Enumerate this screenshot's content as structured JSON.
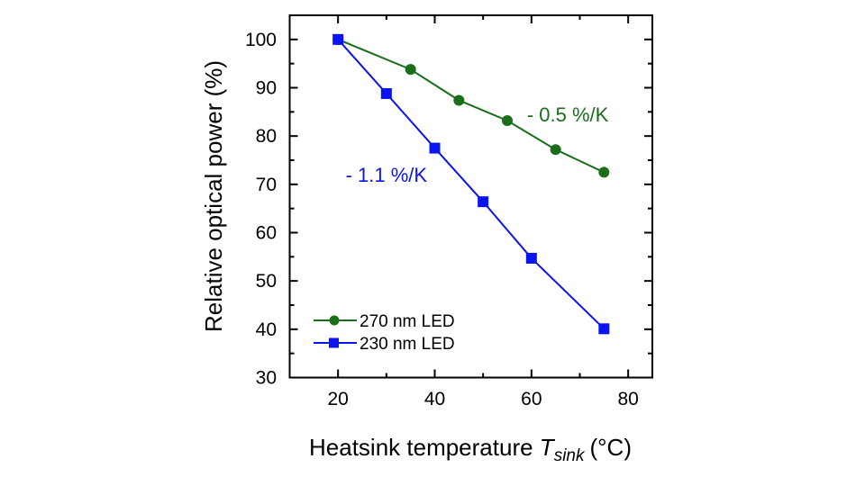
{
  "chart_data": {
    "type": "line",
    "title": "",
    "xlabel": "Heatsink temperature",
    "xlabel_symbol": "T",
    "xlabel_subscript": "sink",
    "xlabel_unit": "(°C)",
    "ylabel": "Relative optical power (%)",
    "xlim": [
      10,
      85
    ],
    "ylim": [
      30,
      105
    ],
    "xticks": [
      20,
      40,
      60,
      80
    ],
    "yticks": [
      30,
      40,
      50,
      60,
      70,
      80,
      90,
      100
    ],
    "grid": false,
    "legend_position": "bottom-left",
    "series": [
      {
        "name": "270 nm LED",
        "color": "#1a6e1a",
        "marker": "circle",
        "x": [
          20,
          35,
          45,
          55,
          65,
          75
        ],
        "y": [
          100,
          93.8,
          87.4,
          83.2,
          77.2,
          72.5
        ]
      },
      {
        "name": "230 nm LED",
        "color": "#0a14f0",
        "marker": "square",
        "x": [
          20,
          30,
          40,
          50,
          60,
          75
        ],
        "y": [
          100,
          88.8,
          77.5,
          66.4,
          54.7,
          40.1
        ]
      }
    ],
    "annotations": [
      {
        "text": "- 0.5 %/K",
        "color": "#1a6e1a",
        "x": 67.5,
        "y": 84.5
      },
      {
        "text": "- 1.1 %/K",
        "color": "#0a14f0",
        "x": 30,
        "y": 72
      }
    ]
  }
}
